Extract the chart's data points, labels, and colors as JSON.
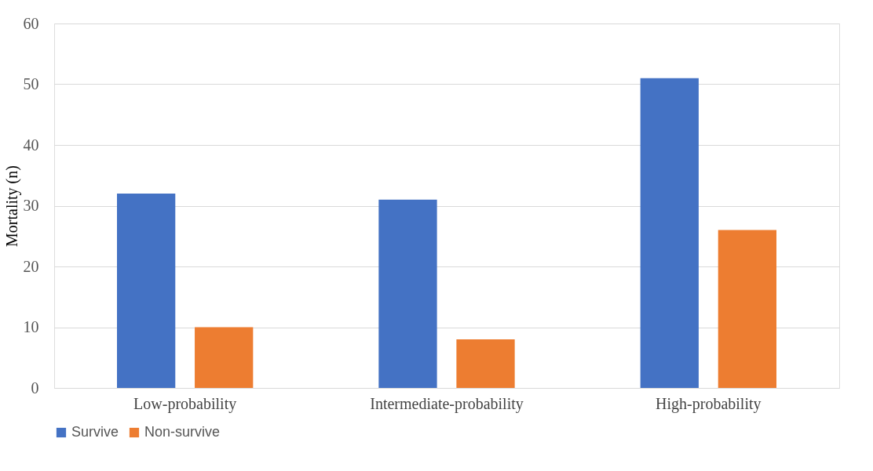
{
  "chart_data": {
    "type": "bar",
    "ylabel": "Mortality (n)",
    "categories": [
      "Low-probability",
      "Intermediate-probability",
      "High-probability"
    ],
    "series": [
      {
        "name": "Survive",
        "color": "#4472c4",
        "values": [
          32,
          31,
          51
        ]
      },
      {
        "name": "Non-survive",
        "color": "#ed7d31",
        "values": [
          10,
          8,
          26
        ]
      }
    ],
    "ylim": [
      0,
      60
    ],
    "yticks": [
      0,
      10,
      20,
      30,
      40,
      50,
      60
    ],
    "grid": "y",
    "legend": "bottom"
  }
}
